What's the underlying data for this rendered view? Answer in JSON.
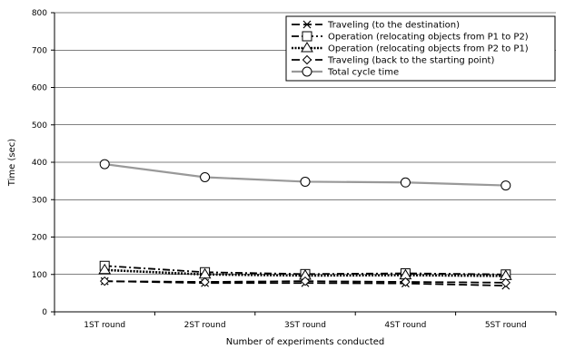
{
  "chart_data": {
    "type": "line",
    "categories": [
      "1ST round",
      "2ST round",
      "3ST round",
      "4ST round",
      "5ST round"
    ],
    "series": [
      {
        "name": "Traveling (to the destination)",
        "values": [
          82,
          77,
          77,
          76,
          70
        ],
        "marker": "x",
        "dash": "long",
        "color": "#000000"
      },
      {
        "name": "Operation (relocating objects from P1 to P2)",
        "values": [
          123,
          106,
          101,
          103,
          100
        ],
        "marker": "square",
        "dash": "dashdot",
        "color": "#000000"
      },
      {
        "name": "Operation (relocating objects from P2 to P1)",
        "values": [
          112,
          100,
          97,
          98,
          96
        ],
        "marker": "triangle",
        "dash": "dotted",
        "color": "#000000"
      },
      {
        "name": "Traveling (back to the starting point)",
        "values": [
          82,
          80,
          82,
          80,
          78
        ],
        "marker": "diamond",
        "dash": "long",
        "color": "#000000"
      },
      {
        "name": "Total cycle time",
        "values": [
          395,
          360,
          348,
          346,
          338
        ],
        "marker": "circle",
        "dash": "solid",
        "color": "#999999"
      }
    ],
    "xlabel": "Number of experiments conducted",
    "ylabel": "Time (sec)",
    "ylim": [
      0,
      800
    ],
    "yticks": [
      0,
      100,
      200,
      300,
      400,
      500,
      600,
      700,
      800
    ],
    "grid": "horizontal",
    "legend": "top-right"
  }
}
